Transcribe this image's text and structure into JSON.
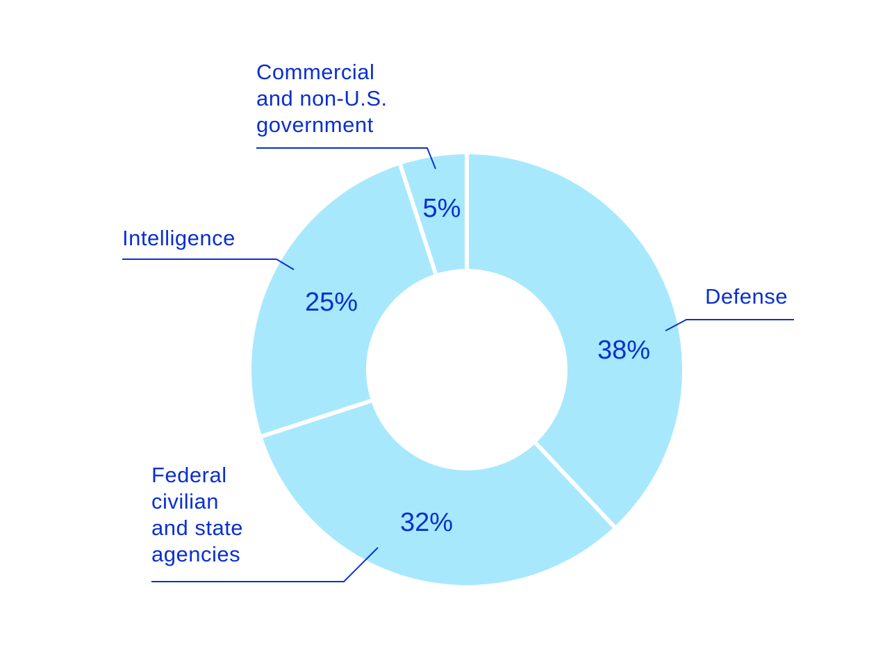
{
  "chart_data": {
    "type": "pie",
    "donut": true,
    "categories": [
      "Defense",
      "Federal civilian and state agencies",
      "Intelligence",
      "Commercial and non-U.S. government"
    ],
    "values": [
      38,
      32,
      25,
      5
    ],
    "value_labels": [
      "38%",
      "32%",
      "25%",
      "5%"
    ],
    "label_lines": [
      [
        "Defense"
      ],
      [
        "Federal",
        "civilian",
        "and state",
        "agencies"
      ],
      [
        "Intelligence"
      ],
      [
        "Commercial",
        "and non-U.S.",
        "government"
      ]
    ],
    "start": "top",
    "direction": "clockwise",
    "colors": {
      "slice": "#a8e8fd",
      "text": "#0a2fd0",
      "leader": "#0a2fd0",
      "separator": "#ffffff"
    }
  }
}
